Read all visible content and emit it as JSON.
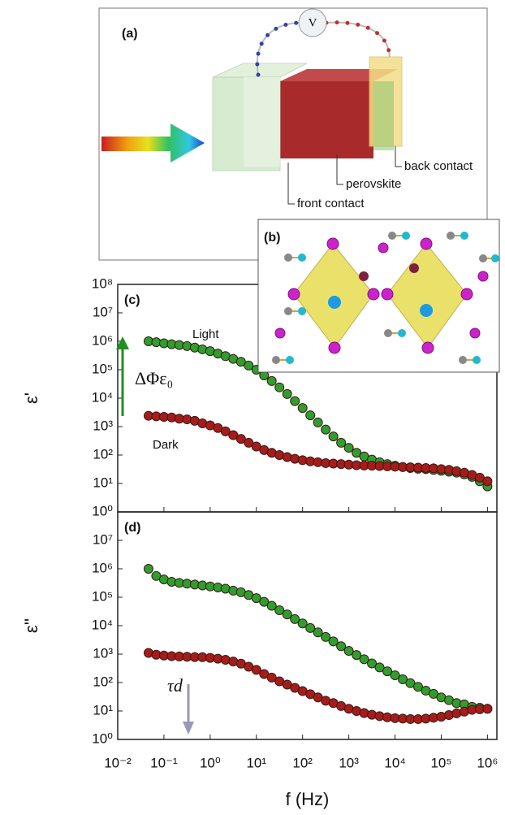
{
  "chart_data": [
    {
      "type": "scatter",
      "panel_label": "(c)",
      "y_label": "ε'",
      "log_x": true,
      "log_y": true,
      "grid": false,
      "xlim": [
        0.01,
        1600000
      ],
      "ylim": [
        1,
        100000000
      ],
      "yticks": [
        {
          "value": 1,
          "label": "10⁰"
        },
        {
          "value": 10,
          "label": "10¹"
        },
        {
          "value": 100,
          "label": "10²"
        },
        {
          "value": 1000,
          "label": "10³"
        },
        {
          "value": 10000,
          "label": "10⁴"
        },
        {
          "value": 100000,
          "label": "10⁵"
        },
        {
          "value": 1000000,
          "label": "10⁶"
        },
        {
          "value": 10000000,
          "label": "10⁷"
        },
        {
          "value": 100000000,
          "label": "10⁸"
        }
      ],
      "x": [
        0.0464,
        0.0681,
        0.1,
        0.147,
        0.215,
        0.316,
        0.464,
        0.681,
        1,
        1.47,
        2.15,
        3.16,
        4.64,
        6.81,
        10,
        14.7,
        21.5,
        31.6,
        46.4,
        68.1,
        100,
        147,
        215,
        316,
        464,
        681,
        1000,
        1470,
        2150,
        3160,
        4640,
        6810,
        10000,
        14700,
        21500,
        31600,
        46400,
        68100,
        100000,
        147000,
        215000,
        316000,
        464000,
        681000,
        1000000
      ],
      "series": [
        {
          "name": "Light",
          "color": "#2f9e2f",
          "values": [
            1000000.0,
            930000.0,
            850000.0,
            790000.0,
            740000.0,
            680000.0,
            600000.0,
            520000.0,
            450000.0,
            370000.0,
            300000.0,
            240000.0,
            190000.0,
            140000.0,
            100000.0,
            63000.0,
            40000.0,
            24000.0,
            14000.0,
            7900.0,
            4500.0,
            2500.0,
            1400.0,
            790,
            450,
            270,
            180,
            120,
            89,
            69,
            56,
            48,
            42,
            38,
            35,
            33,
            32,
            30,
            28,
            26,
            24,
            21,
            17,
            12,
            7.9
          ]
        },
        {
          "name": "Dark",
          "color": "#a51c1c",
          "values": [
            2400.0,
            2300.0,
            2200.0,
            2100.0,
            1900.0,
            1800.0,
            1600.0,
            1300.0,
            1100.0,
            890,
            680,
            500,
            370,
            270,
            200,
            150,
            120,
            100,
            85,
            74,
            66,
            60,
            56,
            52,
            50,
            48,
            46,
            44,
            43,
            42,
            41,
            40,
            39,
            38,
            37,
            36,
            35,
            34,
            32,
            30,
            27,
            24,
            20,
            16,
            12
          ]
        }
      ],
      "annotation": "ΔΦε₀",
      "arrow_color": "#1f8f1f"
    },
    {
      "type": "scatter",
      "panel_label": "(d)",
      "y_label": "ε''",
      "x_label": "f (Hz)",
      "log_x": true,
      "log_y": true,
      "grid": false,
      "xlim": [
        0.01,
        1600000
      ],
      "ylim": [
        1,
        100000000
      ],
      "yticks": [
        {
          "value": 1,
          "label": "10⁰"
        },
        {
          "value": 10,
          "label": "10¹"
        },
        {
          "value": 100,
          "label": "10²"
        },
        {
          "value": 1000,
          "label": "10³"
        },
        {
          "value": 10000,
          "label": "10⁴"
        },
        {
          "value": 100000,
          "label": "10⁵"
        },
        {
          "value": 1000000,
          "label": "10⁶"
        },
        {
          "value": 10000000,
          "label": "10⁷"
        }
      ],
      "xticks": [
        {
          "value": 0.01,
          "label": "10⁻²"
        },
        {
          "value": 0.1,
          "label": "10⁻¹"
        },
        {
          "value": 1,
          "label": "10⁰"
        },
        {
          "value": 10,
          "label": "10¹"
        },
        {
          "value": 100,
          "label": "10²"
        },
        {
          "value": 1000,
          "label": "10³"
        },
        {
          "value": 10000,
          "label": "10⁴"
        },
        {
          "value": 100000,
          "label": "10⁵"
        },
        {
          "value": 1000000,
          "label": "10⁶"
        }
      ],
      "x": [
        0.0464,
        0.0681,
        0.1,
        0.147,
        0.215,
        0.316,
        0.464,
        0.681,
        1,
        1.47,
        2.15,
        3.16,
        4.64,
        6.81,
        10,
        14.7,
        21.5,
        31.6,
        46.4,
        68.1,
        100,
        147,
        215,
        316,
        464,
        681,
        1000,
        1470,
        2150,
        3160,
        4640,
        6810,
        10000,
        14700,
        21500,
        31600,
        46400,
        68100,
        100000,
        147000,
        215000,
        316000,
        464000,
        681000,
        1000000
      ],
      "series": [
        {
          "color": "#2f9e2f",
          "values": [
            1000000.0,
            560000.0,
            420000.0,
            350000.0,
            320000.0,
            300000.0,
            280000.0,
            260000.0,
            240000.0,
            220000.0,
            200000.0,
            170000.0,
            150000.0,
            120000.0,
            93000.0,
            69000.0,
            50000.0,
            35000.0,
            25000.0,
            17000.0,
            12000.0,
            8300.0,
            5800.0,
            4000.0,
            2800.0,
            1900.0,
            1300.0,
            930,
            660,
            470,
            340,
            250,
            180,
            130,
            95,
            71,
            52,
            40,
            30,
            24,
            19,
            17,
            14,
            13,
            12
          ]
        },
        {
          "color": "#a51c1c",
          "values": [
            1100.0,
            950,
            890,
            850,
            830,
            810,
            790,
            780,
            740,
            690,
            630,
            550,
            460,
            360,
            280,
            200,
            150,
            110,
            85,
            65,
            50,
            39,
            30,
            23,
            19,
            15,
            12,
            10,
            8.5,
            7.4,
            6.6,
            6.0,
            5.6,
            5.4,
            5.2,
            5.2,
            5.4,
            5.8,
            6.3,
            7.2,
            8.3,
            9.5,
            11,
            11.5,
            12
          ]
        }
      ],
      "annotation": "τd",
      "arrow_color": "#9a98b8"
    }
  ],
  "figure": {
    "panel_a": {
      "label": "(a)",
      "meter": "V",
      "labels": [
        "back contact",
        "perovskite",
        "front contact"
      ]
    },
    "panel_b": {
      "label": "(b)"
    }
  }
}
